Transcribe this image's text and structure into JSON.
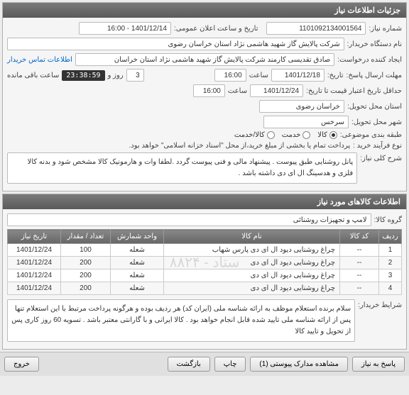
{
  "panels": {
    "info": {
      "title": "جزئیات اطلاعات نیاز"
    },
    "items": {
      "title": "اطلاعات کالاهای مورد نیاز"
    }
  },
  "labels": {
    "need_no": "شماره نیاز:",
    "announce_dt": "تاریخ و ساعت اعلان عمومی:",
    "buyer_org": "نام دستگاه خریدار:",
    "requester": "ایجاد کننده درخواست:",
    "contact": "اطلاعات تماس خریدار",
    "send_deadline": "مهلت ارسال پاسخ:",
    "date_word": "تاریخ:",
    "time_word": "ساعت",
    "remaining": "ساعت باقی مانده",
    "day_and": "روز و",
    "valid_until": "حداقل تاریخ اعتبار قیمت تا تاریخ:",
    "delivery_prov": "استان محل تحویل:",
    "delivery_city": "شهر محل تحویل:",
    "category": "طبقه بندی موضوعی:",
    "process_type": "نوع فرآیند خرید :",
    "process_note": "پرداخت تمام یا بخشی از مبلغ خرید،از محل \"اسناد خزانه اسلامی\" خواهد بود.",
    "need_desc": "شرح کلی نیاز:",
    "item_group": "گروه کالا:",
    "buyer_terms": "شرایط خریدار:"
  },
  "values": {
    "need_no": "1101092134001564",
    "announce_dt": "1401/12/14 - 16:00",
    "buyer_org": "شرکت پالایش گاز شهید هاشمی نژاد   استان خراسان رضوی",
    "requester": "صادق تقدیسی  کارمند شرکت پالایش گاز شهید هاشمی نژاد   استان خراسان",
    "deadline_date": "1401/12/18",
    "deadline_time": "16:00",
    "days_remaining": "3",
    "countdown": "23:38:59",
    "valid_date": "1401/12/24",
    "valid_time": "16:00",
    "delivery_prov": "خراسان رضوی",
    "delivery_city": "سرخس",
    "need_desc": "پانل روشنایی طبق پیوست . پیشنهاد مالی و فنی پیوست گردد .لطفا وات و هارمونیک کالا مشخص شود و بدنه کالا فلزی و هدسینگ ال ای دی داشته باشد .",
    "item_group": "لامپ و تجهیزات روشنائی",
    "buyer_terms": "سلام   برنده استعلام موظف به ارائه شناسه ملی (ایران کد) هر ردیف بوده و هرگونه پرداخت مرتبط با این استعلام تنها پس از ارائه شناسه ملی تایید شده قابل انجام خواهد بود . کالا ایرانی و با گارانتی معتبر باشد . تسویه 60 روز کاری پس از تحویل و تایید کالا"
  },
  "radios": {
    "cat": [
      {
        "label": "کالا",
        "checked": true
      },
      {
        "label": "خدمت",
        "checked": false
      },
      {
        "label": "کالا/خدمت",
        "checked": false
      }
    ]
  },
  "table": {
    "headers": [
      "ردیف",
      "کد کالا",
      "نام کالا",
      "واحد شمارش",
      "تعداد / مقدار",
      "تاریخ نیاز"
    ],
    "rows": [
      [
        "1",
        "--",
        "چراغ روشنایی دیود ال ای دی پارس شهاب",
        "شعله",
        "100",
        "1401/12/24"
      ],
      [
        "2",
        "--",
        "چراغ روشنایی دیود ال ای دی",
        "شعله",
        "200",
        "1401/12/24"
      ],
      [
        "3",
        "--",
        "چراغ روشنایی دیود ال ای دی",
        "شعله",
        "200",
        "1401/12/24"
      ],
      [
        "4",
        "--",
        "چراغ روشنایی دیود ال ای دی",
        "شعله",
        "200",
        "1401/12/24"
      ]
    ],
    "watermark": "ستاد - ۸۸۲۴"
  },
  "buttons": {
    "respond": "پاسخ به نیاز",
    "attachments": "مشاهده مدارک پیوستی (1)",
    "print": "چاپ",
    "back": "بازگشت",
    "exit": "خروج"
  },
  "colors": {
    "header_bg_top": "#7a7a7a",
    "header_bg_bottom": "#5a5a5a",
    "link": "#0066cc",
    "countdown_bg": "#333333"
  }
}
